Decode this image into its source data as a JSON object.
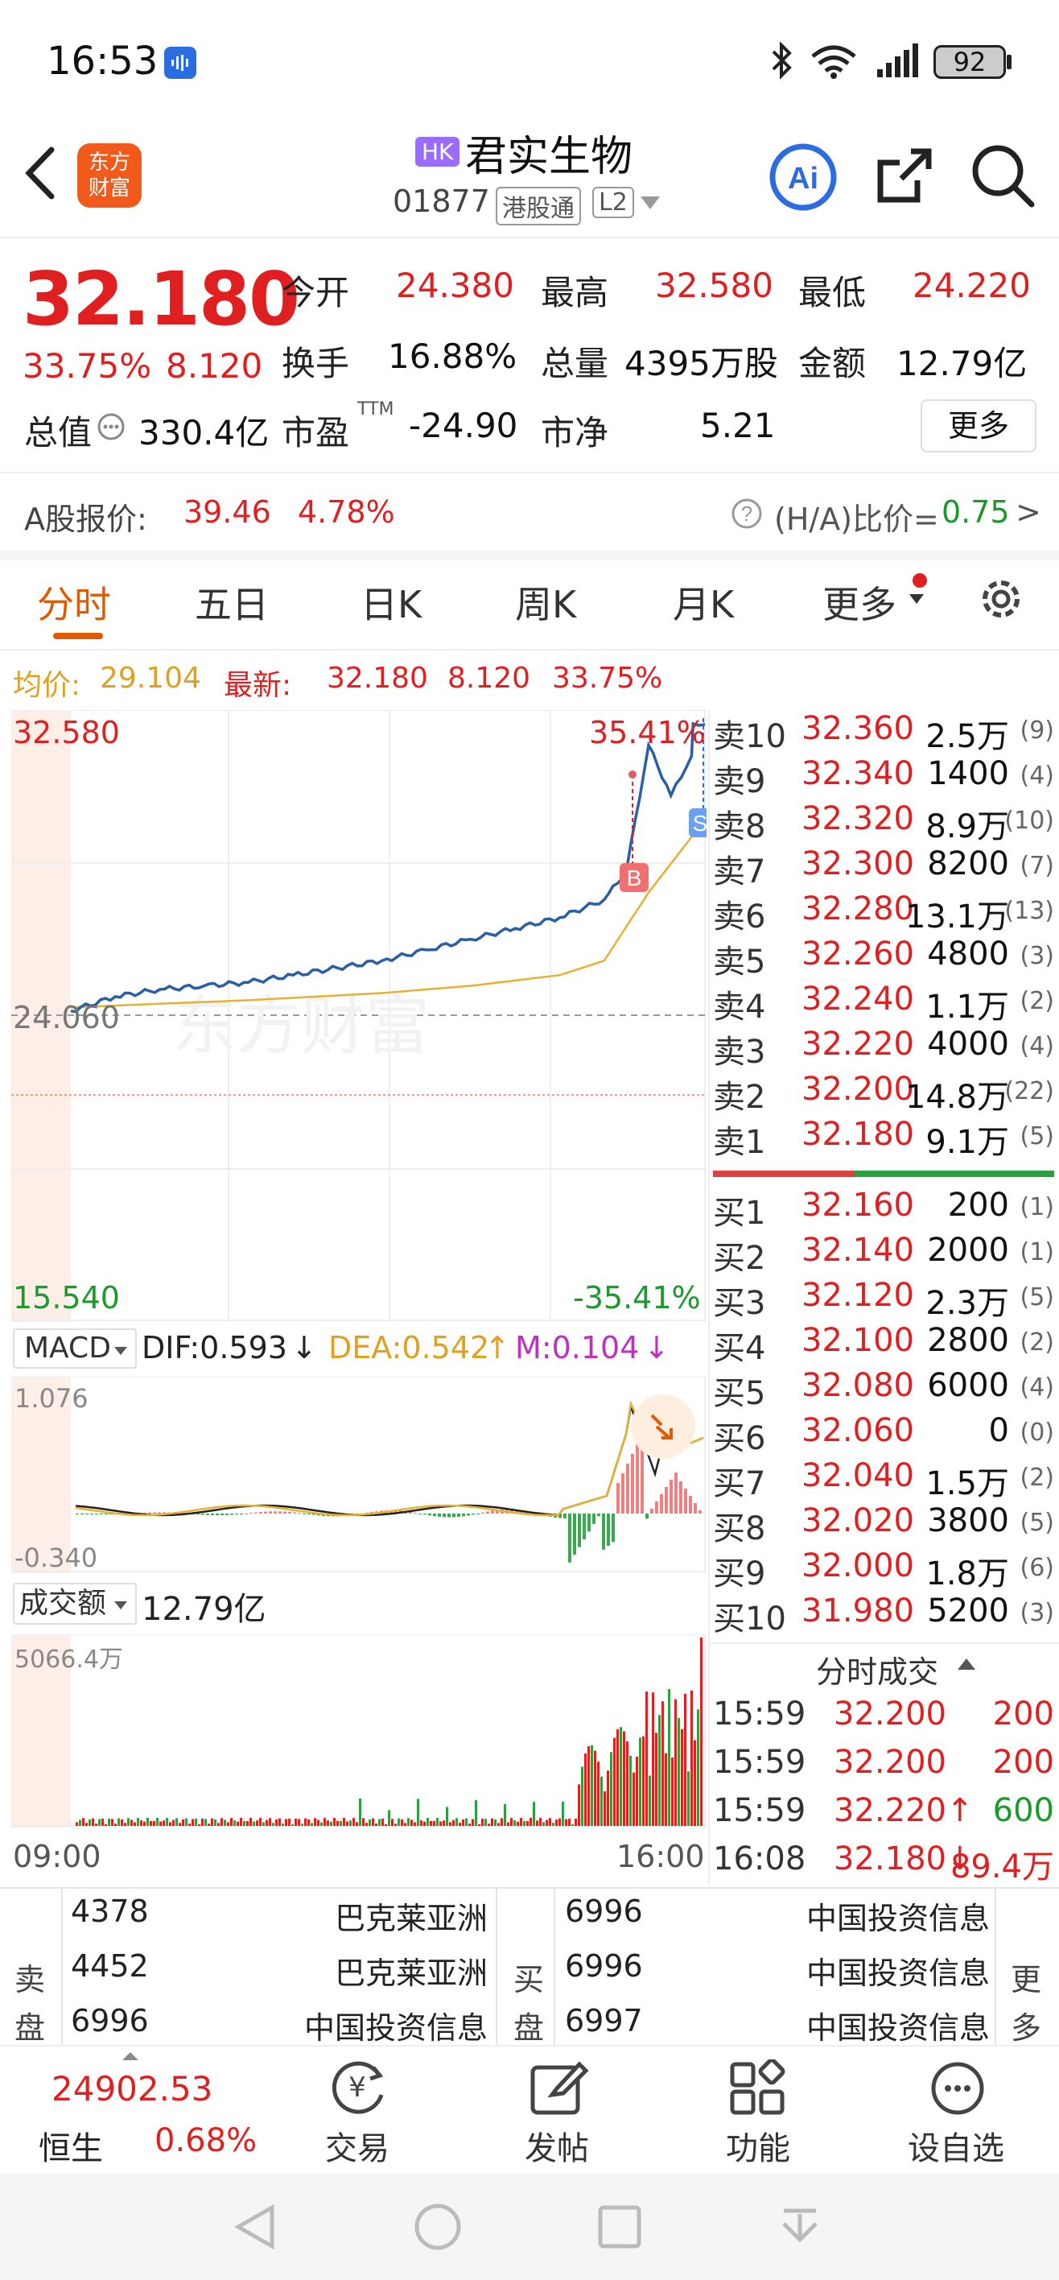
{
  "status_bar": {
    "time": "16:53",
    "battery": "92"
  },
  "header": {
    "market_badge": "HK",
    "title": "君实生物",
    "code": "01877",
    "tag1": "港股通",
    "tag2": "L2"
  },
  "quote": {
    "price": "32.180",
    "change_pct": "33.75%",
    "change": "8.120",
    "open_label": "今开",
    "open": "24.380",
    "high_label": "最高",
    "high": "32.580",
    "low_label": "最低",
    "low": "24.220",
    "turnover_label": "换手",
    "turnover": "16.88%",
    "volume_label": "总量",
    "volume": "4395万股",
    "amount_label": "金额",
    "amount": "12.79亿",
    "mktcap_label": "总值",
    "mktcap": "330.4亿",
    "pe_label": "市盈",
    "pe_sup": "TTM",
    "pe": "-24.90",
    "pb_label": "市净",
    "pb": "5.21",
    "more_button": "更多"
  },
  "a_share": {
    "label": "A股报价:",
    "price": "39.46",
    "pct": "4.78%",
    "ha_label": "(H/A)比价=",
    "ha_value": "0.75",
    "arrow": ">"
  },
  "tabs": [
    {
      "label": "分时"
    },
    {
      "label": "五日"
    },
    {
      "label": "日K"
    },
    {
      "label": "周K"
    },
    {
      "label": "月K"
    },
    {
      "label": "更多"
    }
  ],
  "info_line": {
    "avg_label": "均价:",
    "avg": "29.104",
    "latest_label": "最新:",
    "latest": "32.180",
    "chg": "8.120",
    "pct": "33.75%"
  },
  "chart": {
    "max_price": "32.580",
    "max_pct": "35.41%",
    "mid_price": "24.060",
    "min_price": "15.540",
    "min_pct": "-35.41%",
    "macd_label": "MACD",
    "dif": "DIF:0.593",
    "dea": "DEA:0.542",
    "m": "M:0.104",
    "macd_max": "1.076",
    "macd_min": "-0.340",
    "vol_label": "成交额",
    "vol_total": "12.79亿",
    "vol_max": "5066.4万",
    "time_start": "09:00",
    "time_end": "16:00",
    "marker_b": "B",
    "marker_s": "S",
    "watermark": "东方财富"
  },
  "chart_data": {
    "type": "line",
    "series": [
      {
        "x": [
          "09:00",
          "09:30",
          "10:00",
          "10:30",
          "11:00",
          "11:30",
          "12:30",
          "13:00",
          "13:30",
          "14:00",
          "14:30",
          "15:00",
          "15:15",
          "15:30",
          "15:45",
          "15:59",
          "16:00",
          "16:08"
        ],
        "values": [
          24.2,
          24.6,
          24.8,
          24.9,
          25.0,
          25.2,
          25.6,
          25.9,
          26.2,
          26.5,
          26.8,
          27.3,
          28.1,
          31.6,
          30.2,
          31.3,
          32.2,
          32.18
        ]
      },
      {
        "x": [
          "09:00",
          "10:00",
          "11:00",
          "12:30",
          "13:30",
          "14:30",
          "15:00",
          "15:30",
          "16:00"
        ],
        "values": [
          24.3,
          24.4,
          24.5,
          24.7,
          24.9,
          25.2,
          25.6,
          27.5,
          29.1
        ]
      }
    ],
    "ylim": [
      15.54,
      32.58
    ]
  },
  "order_book": {
    "asks": [
      {
        "label": "卖10",
        "price": "32.360",
        "vol": "2.5万",
        "cnt": "(9)"
      },
      {
        "label": "卖9",
        "price": "32.340",
        "vol": "1400",
        "cnt": "(4)"
      },
      {
        "label": "卖8",
        "price": "32.320",
        "vol": "8.9万",
        "cnt": "(10)"
      },
      {
        "label": "卖7",
        "price": "32.300",
        "vol": "8200",
        "cnt": "(7)"
      },
      {
        "label": "卖6",
        "price": "32.280",
        "vol": "13.1万",
        "cnt": "(13)"
      },
      {
        "label": "卖5",
        "price": "32.260",
        "vol": "4800",
        "cnt": "(3)"
      },
      {
        "label": "卖4",
        "price": "32.240",
        "vol": "1.1万",
        "cnt": "(2)"
      },
      {
        "label": "卖3",
        "price": "32.220",
        "vol": "4000",
        "cnt": "(4)"
      },
      {
        "label": "卖2",
        "price": "32.200",
        "vol": "14.8万",
        "cnt": "(22)"
      },
      {
        "label": "卖1",
        "price": "32.180",
        "vol": "9.1万",
        "cnt": "(5)"
      }
    ],
    "bids": [
      {
        "label": "买1",
        "price": "32.160",
        "vol": "200",
        "cnt": "(1)"
      },
      {
        "label": "买2",
        "price": "32.140",
        "vol": "2000",
        "cnt": "(1)"
      },
      {
        "label": "买3",
        "price": "32.120",
        "vol": "2.3万",
        "cnt": "(5)"
      },
      {
        "label": "买4",
        "price": "32.100",
        "vol": "2800",
        "cnt": "(2)"
      },
      {
        "label": "买5",
        "price": "32.080",
        "vol": "6000",
        "cnt": "(4)"
      },
      {
        "label": "买6",
        "price": "32.060",
        "vol": "0",
        "cnt": "(0)"
      },
      {
        "label": "买7",
        "price": "32.040",
        "vol": "1.5万",
        "cnt": "(2)"
      },
      {
        "label": "买8",
        "price": "32.020",
        "vol": "3800",
        "cnt": "(5)"
      },
      {
        "label": "买9",
        "price": "32.000",
        "vol": "1.8万",
        "cnt": "(6)"
      },
      {
        "label": "买10",
        "price": "31.980",
        "vol": "5200",
        "cnt": "(3)"
      }
    ]
  },
  "ticks": {
    "title": "分时成交",
    "rows": [
      {
        "time": "15:59",
        "price": "32.200",
        "vol": "200"
      },
      {
        "time": "15:59",
        "price": "32.200",
        "vol": "200"
      },
      {
        "time": "15:59",
        "price": "32.220↑",
        "vol": "600"
      },
      {
        "time": "16:08",
        "price": "32.180↓",
        "vol": "89.4万"
      }
    ]
  },
  "broker_queue": {
    "sell_label": [
      "卖",
      "盘"
    ],
    "buy_label": [
      "买",
      "盘"
    ],
    "more_label": [
      "更",
      "多"
    ],
    "sell": [
      {
        "id": "4378",
        "name": "巴克莱亚洲"
      },
      {
        "id": "4452",
        "name": "巴克莱亚洲"
      },
      {
        "id": "6996",
        "name": "中国投资信息"
      }
    ],
    "buy": [
      {
        "id": "6996",
        "name": "中国投资信息"
      },
      {
        "id": "6996",
        "name": "中国投资信息"
      },
      {
        "id": "6997",
        "name": "中国投资信息"
      }
    ]
  },
  "bottom_nav": {
    "index_value": "24902.53",
    "index_name": "恒生",
    "index_pct": "0.68%",
    "items": [
      "交易",
      "发帖",
      "功能",
      "设自选"
    ]
  }
}
